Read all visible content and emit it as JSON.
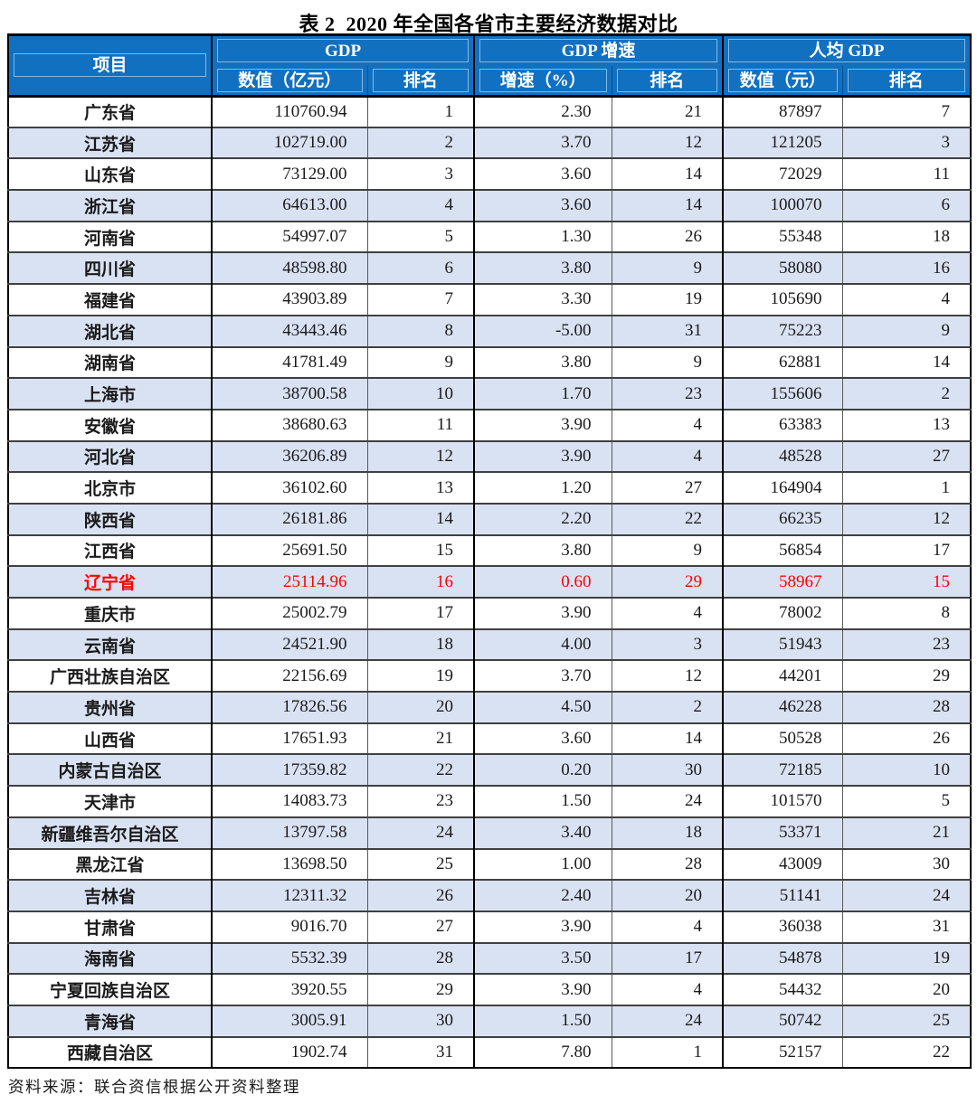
{
  "title": "表 2  2020 年全国各省市主要经济数据对比",
  "source_note": "资料来源：联合资信根据公开资料整理",
  "colors": {
    "header_bg": "#1170c0",
    "header_text": "#ffffff",
    "alt_row_bg": "#d9e2f3",
    "highlight_text": "#ff0000",
    "body_text": "#1a1a1a"
  },
  "table": {
    "corner_label": "项目",
    "groups": [
      {
        "label": "GDP",
        "sub": [
          "数值（亿元）",
          "排名"
        ]
      },
      {
        "label": "GDP 增速",
        "sub": [
          "增速（%）",
          "排名"
        ]
      },
      {
        "label": "人均 GDP",
        "sub": [
          "数值（元）",
          "排名"
        ]
      }
    ],
    "rows": [
      {
        "name": "广东省",
        "gdp": "110760.94",
        "gdp_rank": "1",
        "growth": "2.30",
        "growth_rank": "21",
        "per_capita": "87897",
        "per_capita_rank": "7"
      },
      {
        "name": "江苏省",
        "gdp": "102719.00",
        "gdp_rank": "2",
        "growth": "3.70",
        "growth_rank": "12",
        "per_capita": "121205",
        "per_capita_rank": "3"
      },
      {
        "name": "山东省",
        "gdp": "73129.00",
        "gdp_rank": "3",
        "growth": "3.60",
        "growth_rank": "14",
        "per_capita": "72029",
        "per_capita_rank": "11"
      },
      {
        "name": "浙江省",
        "gdp": "64613.00",
        "gdp_rank": "4",
        "growth": "3.60",
        "growth_rank": "14",
        "per_capita": "100070",
        "per_capita_rank": "6"
      },
      {
        "name": "河南省",
        "gdp": "54997.07",
        "gdp_rank": "5",
        "growth": "1.30",
        "growth_rank": "26",
        "per_capita": "55348",
        "per_capita_rank": "18"
      },
      {
        "name": "四川省",
        "gdp": "48598.80",
        "gdp_rank": "6",
        "growth": "3.80",
        "growth_rank": "9",
        "per_capita": "58080",
        "per_capita_rank": "16"
      },
      {
        "name": "福建省",
        "gdp": "43903.89",
        "gdp_rank": "7",
        "growth": "3.30",
        "growth_rank": "19",
        "per_capita": "105690",
        "per_capita_rank": "4"
      },
      {
        "name": "湖北省",
        "gdp": "43443.46",
        "gdp_rank": "8",
        "growth": "-5.00",
        "growth_rank": "31",
        "per_capita": "75223",
        "per_capita_rank": "9"
      },
      {
        "name": "湖南省",
        "gdp": "41781.49",
        "gdp_rank": "9",
        "growth": "3.80",
        "growth_rank": "9",
        "per_capita": "62881",
        "per_capita_rank": "14"
      },
      {
        "name": "上海市",
        "gdp": "38700.58",
        "gdp_rank": "10",
        "growth": "1.70",
        "growth_rank": "23",
        "per_capita": "155606",
        "per_capita_rank": "2"
      },
      {
        "name": "安徽省",
        "gdp": "38680.63",
        "gdp_rank": "11",
        "growth": "3.90",
        "growth_rank": "4",
        "per_capita": "63383",
        "per_capita_rank": "13"
      },
      {
        "name": "河北省",
        "gdp": "36206.89",
        "gdp_rank": "12",
        "growth": "3.90",
        "growth_rank": "4",
        "per_capita": "48528",
        "per_capita_rank": "27"
      },
      {
        "name": "北京市",
        "gdp": "36102.60",
        "gdp_rank": "13",
        "growth": "1.20",
        "growth_rank": "27",
        "per_capita": "164904",
        "per_capita_rank": "1"
      },
      {
        "name": "陕西省",
        "gdp": "26181.86",
        "gdp_rank": "14",
        "growth": "2.20",
        "growth_rank": "22",
        "per_capita": "66235",
        "per_capita_rank": "12"
      },
      {
        "name": "江西省",
        "gdp": "25691.50",
        "gdp_rank": "15",
        "growth": "3.80",
        "growth_rank": "9",
        "per_capita": "56854",
        "per_capita_rank": "17"
      },
      {
        "name": "辽宁省",
        "gdp": "25114.96",
        "gdp_rank": "16",
        "growth": "0.60",
        "growth_rank": "29",
        "per_capita": "58967",
        "per_capita_rank": "15",
        "highlight": true
      },
      {
        "name": "重庆市",
        "gdp": "25002.79",
        "gdp_rank": "17",
        "growth": "3.90",
        "growth_rank": "4",
        "per_capita": "78002",
        "per_capita_rank": "8"
      },
      {
        "name": "云南省",
        "gdp": "24521.90",
        "gdp_rank": "18",
        "growth": "4.00",
        "growth_rank": "3",
        "per_capita": "51943",
        "per_capita_rank": "23"
      },
      {
        "name": "广西壮族自治区",
        "gdp": "22156.69",
        "gdp_rank": "19",
        "growth": "3.70",
        "growth_rank": "12",
        "per_capita": "44201",
        "per_capita_rank": "29"
      },
      {
        "name": "贵州省",
        "gdp": "17826.56",
        "gdp_rank": "20",
        "growth": "4.50",
        "growth_rank": "2",
        "per_capita": "46228",
        "per_capita_rank": "28"
      },
      {
        "name": "山西省",
        "gdp": "17651.93",
        "gdp_rank": "21",
        "growth": "3.60",
        "growth_rank": "14",
        "per_capita": "50528",
        "per_capita_rank": "26"
      },
      {
        "name": "内蒙古自治区",
        "gdp": "17359.82",
        "gdp_rank": "22",
        "growth": "0.20",
        "growth_rank": "30",
        "per_capita": "72185",
        "per_capita_rank": "10"
      },
      {
        "name": "天津市",
        "gdp": "14083.73",
        "gdp_rank": "23",
        "growth": "1.50",
        "growth_rank": "24",
        "per_capita": "101570",
        "per_capita_rank": "5"
      },
      {
        "name": "新疆维吾尔自治区",
        "gdp": "13797.58",
        "gdp_rank": "24",
        "growth": "3.40",
        "growth_rank": "18",
        "per_capita": "53371",
        "per_capita_rank": "21"
      },
      {
        "name": "黑龙江省",
        "gdp": "13698.50",
        "gdp_rank": "25",
        "growth": "1.00",
        "growth_rank": "28",
        "per_capita": "43009",
        "per_capita_rank": "30"
      },
      {
        "name": "吉林省",
        "gdp": "12311.32",
        "gdp_rank": "26",
        "growth": "2.40",
        "growth_rank": "20",
        "per_capita": "51141",
        "per_capita_rank": "24"
      },
      {
        "name": "甘肃省",
        "gdp": "9016.70",
        "gdp_rank": "27",
        "growth": "3.90",
        "growth_rank": "4",
        "per_capita": "36038",
        "per_capita_rank": "31"
      },
      {
        "name": "海南省",
        "gdp": "5532.39",
        "gdp_rank": "28",
        "growth": "3.50",
        "growth_rank": "17",
        "per_capita": "54878",
        "per_capita_rank": "19"
      },
      {
        "name": "宁夏回族自治区",
        "gdp": "3920.55",
        "gdp_rank": "29",
        "growth": "3.90",
        "growth_rank": "4",
        "per_capita": "54432",
        "per_capita_rank": "20"
      },
      {
        "name": "青海省",
        "gdp": "3005.91",
        "gdp_rank": "30",
        "growth": "1.50",
        "growth_rank": "24",
        "per_capita": "50742",
        "per_capita_rank": "25"
      },
      {
        "name": "西藏自治区",
        "gdp": "1902.74",
        "gdp_rank": "31",
        "growth": "7.80",
        "growth_rank": "1",
        "per_capita": "52157",
        "per_capita_rank": "22"
      }
    ]
  }
}
